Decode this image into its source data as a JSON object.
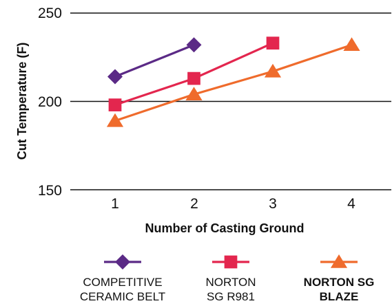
{
  "chart_data": {
    "type": "line",
    "title": "",
    "xlabel": "Number of Casting Ground",
    "ylabel": "Cut Temperature (F)",
    "x_ticks": [
      "1",
      "2",
      "3",
      "4"
    ],
    "y_ticks": [
      "250",
      "200",
      "150"
    ],
    "xlim": [
      0.55,
      4.6
    ],
    "ylim": [
      150,
      250
    ],
    "grid": "horizontal",
    "legend_position": "bottom",
    "series": [
      {
        "name_lines": [
          "COMPETITIVE",
          "CERAMIC BELT"
        ],
        "color": "#5b2a86",
        "marker": "diamond",
        "bold": false,
        "points": [
          [
            1,
            214
          ],
          [
            2,
            232
          ]
        ]
      },
      {
        "name_lines": [
          "NORTON",
          "SG R981"
        ],
        "color": "#e3264e",
        "marker": "square",
        "bold": false,
        "points": [
          [
            1,
            198
          ],
          [
            2,
            213
          ],
          [
            3,
            233
          ]
        ]
      },
      {
        "name_lines": [
          "NORTON SG",
          "BLAZE"
        ],
        "color": "#ef6b2c",
        "marker": "triangle",
        "bold": true,
        "points": [
          [
            1,
            189
          ],
          [
            2,
            204
          ],
          [
            3,
            217
          ],
          [
            4,
            232
          ]
        ]
      }
    ]
  }
}
